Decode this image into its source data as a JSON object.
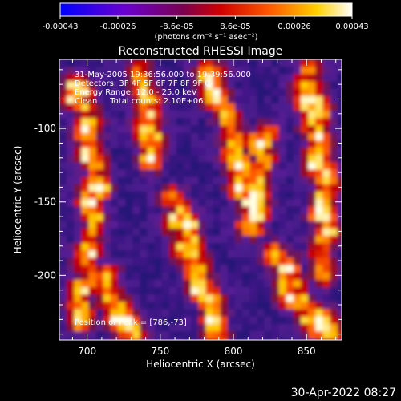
{
  "chart_data": {
    "type": "heatmap",
    "title": "Reconstructed RHESSI Image",
    "xlabel": "Heliocentric X (arcsec)",
    "ylabel": "Heliocentric Y (arcsec)",
    "xlim": [
      681,
      874
    ],
    "ylim": [
      -244,
      -53
    ],
    "x_ticks": [
      700,
      750,
      800,
      850
    ],
    "y_ticks": [
      -100,
      -150,
      -200
    ],
    "colorbar": {
      "tick_labels": [
        "-0.00043",
        "-0.00026",
        "-8.6e-05",
        "8.6e-05",
        "0.00026",
        "0.00043"
      ],
      "tick_values": [
        -0.00043,
        -0.00026,
        -8.6e-05,
        8.6e-05,
        0.00026,
        0.00043
      ],
      "range": [
        -0.00043,
        0.00043
      ],
      "unit_label": "(photons cm⁻² s⁻¹ asec⁻²)",
      "colors": [
        "#0000ff",
        "#7a00c8",
        "#c00000",
        "#ff6000",
        "#ffff00",
        "#ffffff"
      ]
    },
    "annotations": {
      "time_range": "31-May-2005 19:36:56.000 to 19:39:56.000",
      "detectors": "Detectors: 3F 4F 5F 6F 7F 8F 9F 0",
      "energy": "Energy Range: 12.0 - 25.0 keV",
      "method": "Clean     Total counts: 2.10E+06",
      "peak": "Position of Peak = [786,-73]"
    },
    "peak_position": [
      786,
      -73
    ],
    "grid": false
  },
  "footer": {
    "date": "30-Apr-2022 08:27"
  }
}
